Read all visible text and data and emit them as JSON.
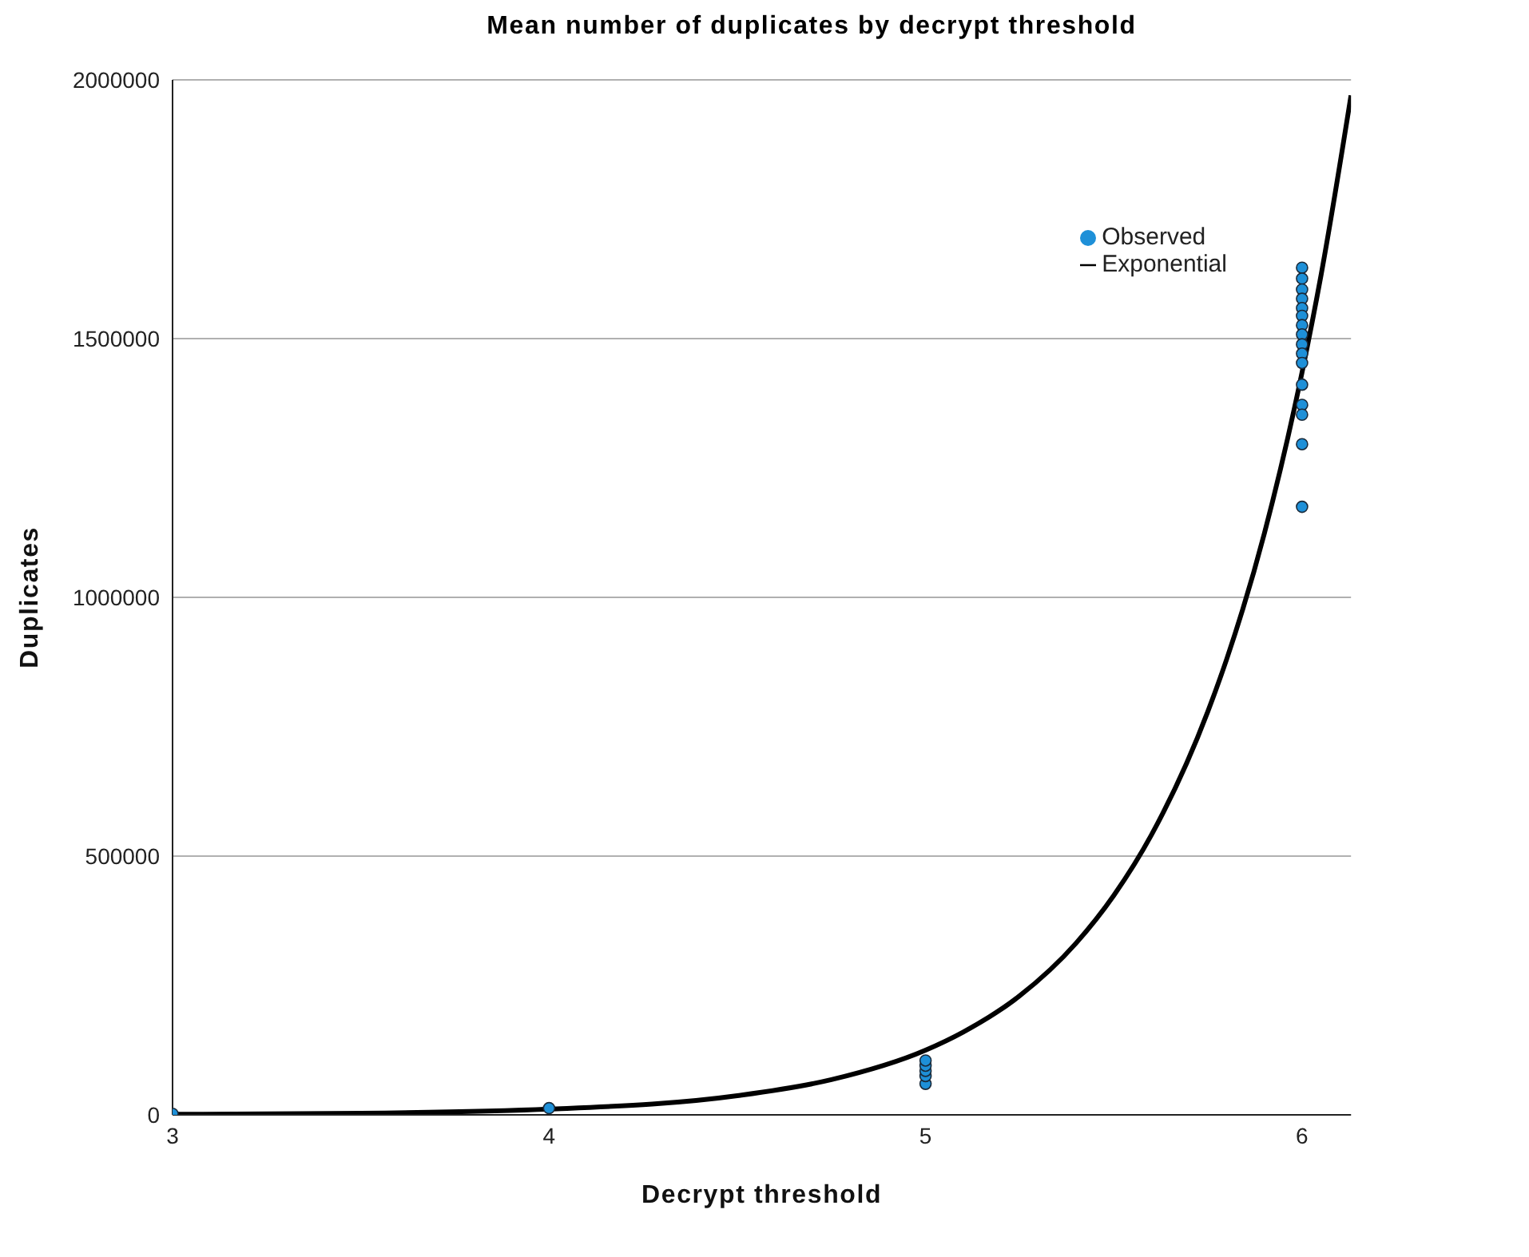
{
  "chart_data": {
    "type": "scatter",
    "title": "Mean number of duplicates by decrypt threshold",
    "xlabel": "Decrypt threshold",
    "ylabel": "Duplicates",
    "series": [
      {
        "name": "Observed",
        "color": "#1e90d8",
        "marker": "circle",
        "x": [
          3,
          4,
          5,
          5,
          5,
          5,
          5,
          6,
          6,
          6,
          6,
          6,
          6,
          6,
          6,
          6,
          6,
          6,
          6,
          6,
          6,
          6,
          6
        ],
        "values": [
          2000,
          13000,
          60000,
          75000,
          85000,
          95000,
          105000,
          1637000,
          1616000,
          1595000,
          1577000,
          1559000,
          1544000,
          1526000,
          1508000,
          1489000,
          1471000,
          1453000,
          1411000,
          1372000,
          1353000,
          1296000,
          1175000
        ]
      },
      {
        "name": "Exponential",
        "type": "line",
        "color": "#000000",
        "marker": "none",
        "x": [
          3,
          3.5,
          4,
          4.5,
          4.75,
          5,
          5.1,
          5.25,
          5.4,
          5.5,
          5.6,
          5.75,
          5.8,
          5.9,
          6,
          6.05,
          6.13
        ],
        "values": [
          1000,
          3000,
          11000,
          37000,
          68000,
          125000,
          160000,
          230000,
          332000,
          424000,
          541000,
          780000,
          881000,
          1124000,
          1435000,
          1621000,
          1970000
        ]
      }
    ],
    "xlim": [
      3,
      6.13
    ],
    "xticks": [
      3,
      4,
      5,
      6
    ],
    "ylim": [
      0,
      2000000
    ],
    "yticks": [
      0,
      500000,
      1000000,
      1500000,
      2000000
    ],
    "grid": "y",
    "legend": "top right"
  }
}
